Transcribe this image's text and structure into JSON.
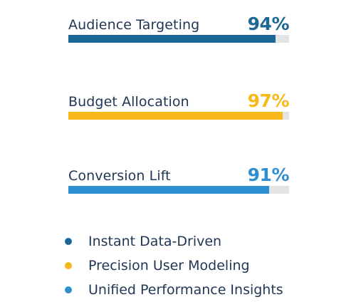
{
  "metrics": [
    {
      "label": "Audience Targeting",
      "value_text": "94%",
      "percent": 94,
      "color": "#1c6796"
    },
    {
      "label": "Budget Allocation",
      "value_text": "97%",
      "percent": 97,
      "color": "#f7b81a"
    },
    {
      "label": "Conversion Lift",
      "value_text": "91%",
      "percent": 91,
      "color": "#2e8fd1"
    }
  ],
  "legend": [
    {
      "label": "Instant Data-Driven",
      "color": "#1c6796"
    },
    {
      "label": "Precision User Modeling",
      "color": "#f7b81a"
    },
    {
      "label": "Unified Performance Insights",
      "color": "#2e8fd1"
    }
  ]
}
